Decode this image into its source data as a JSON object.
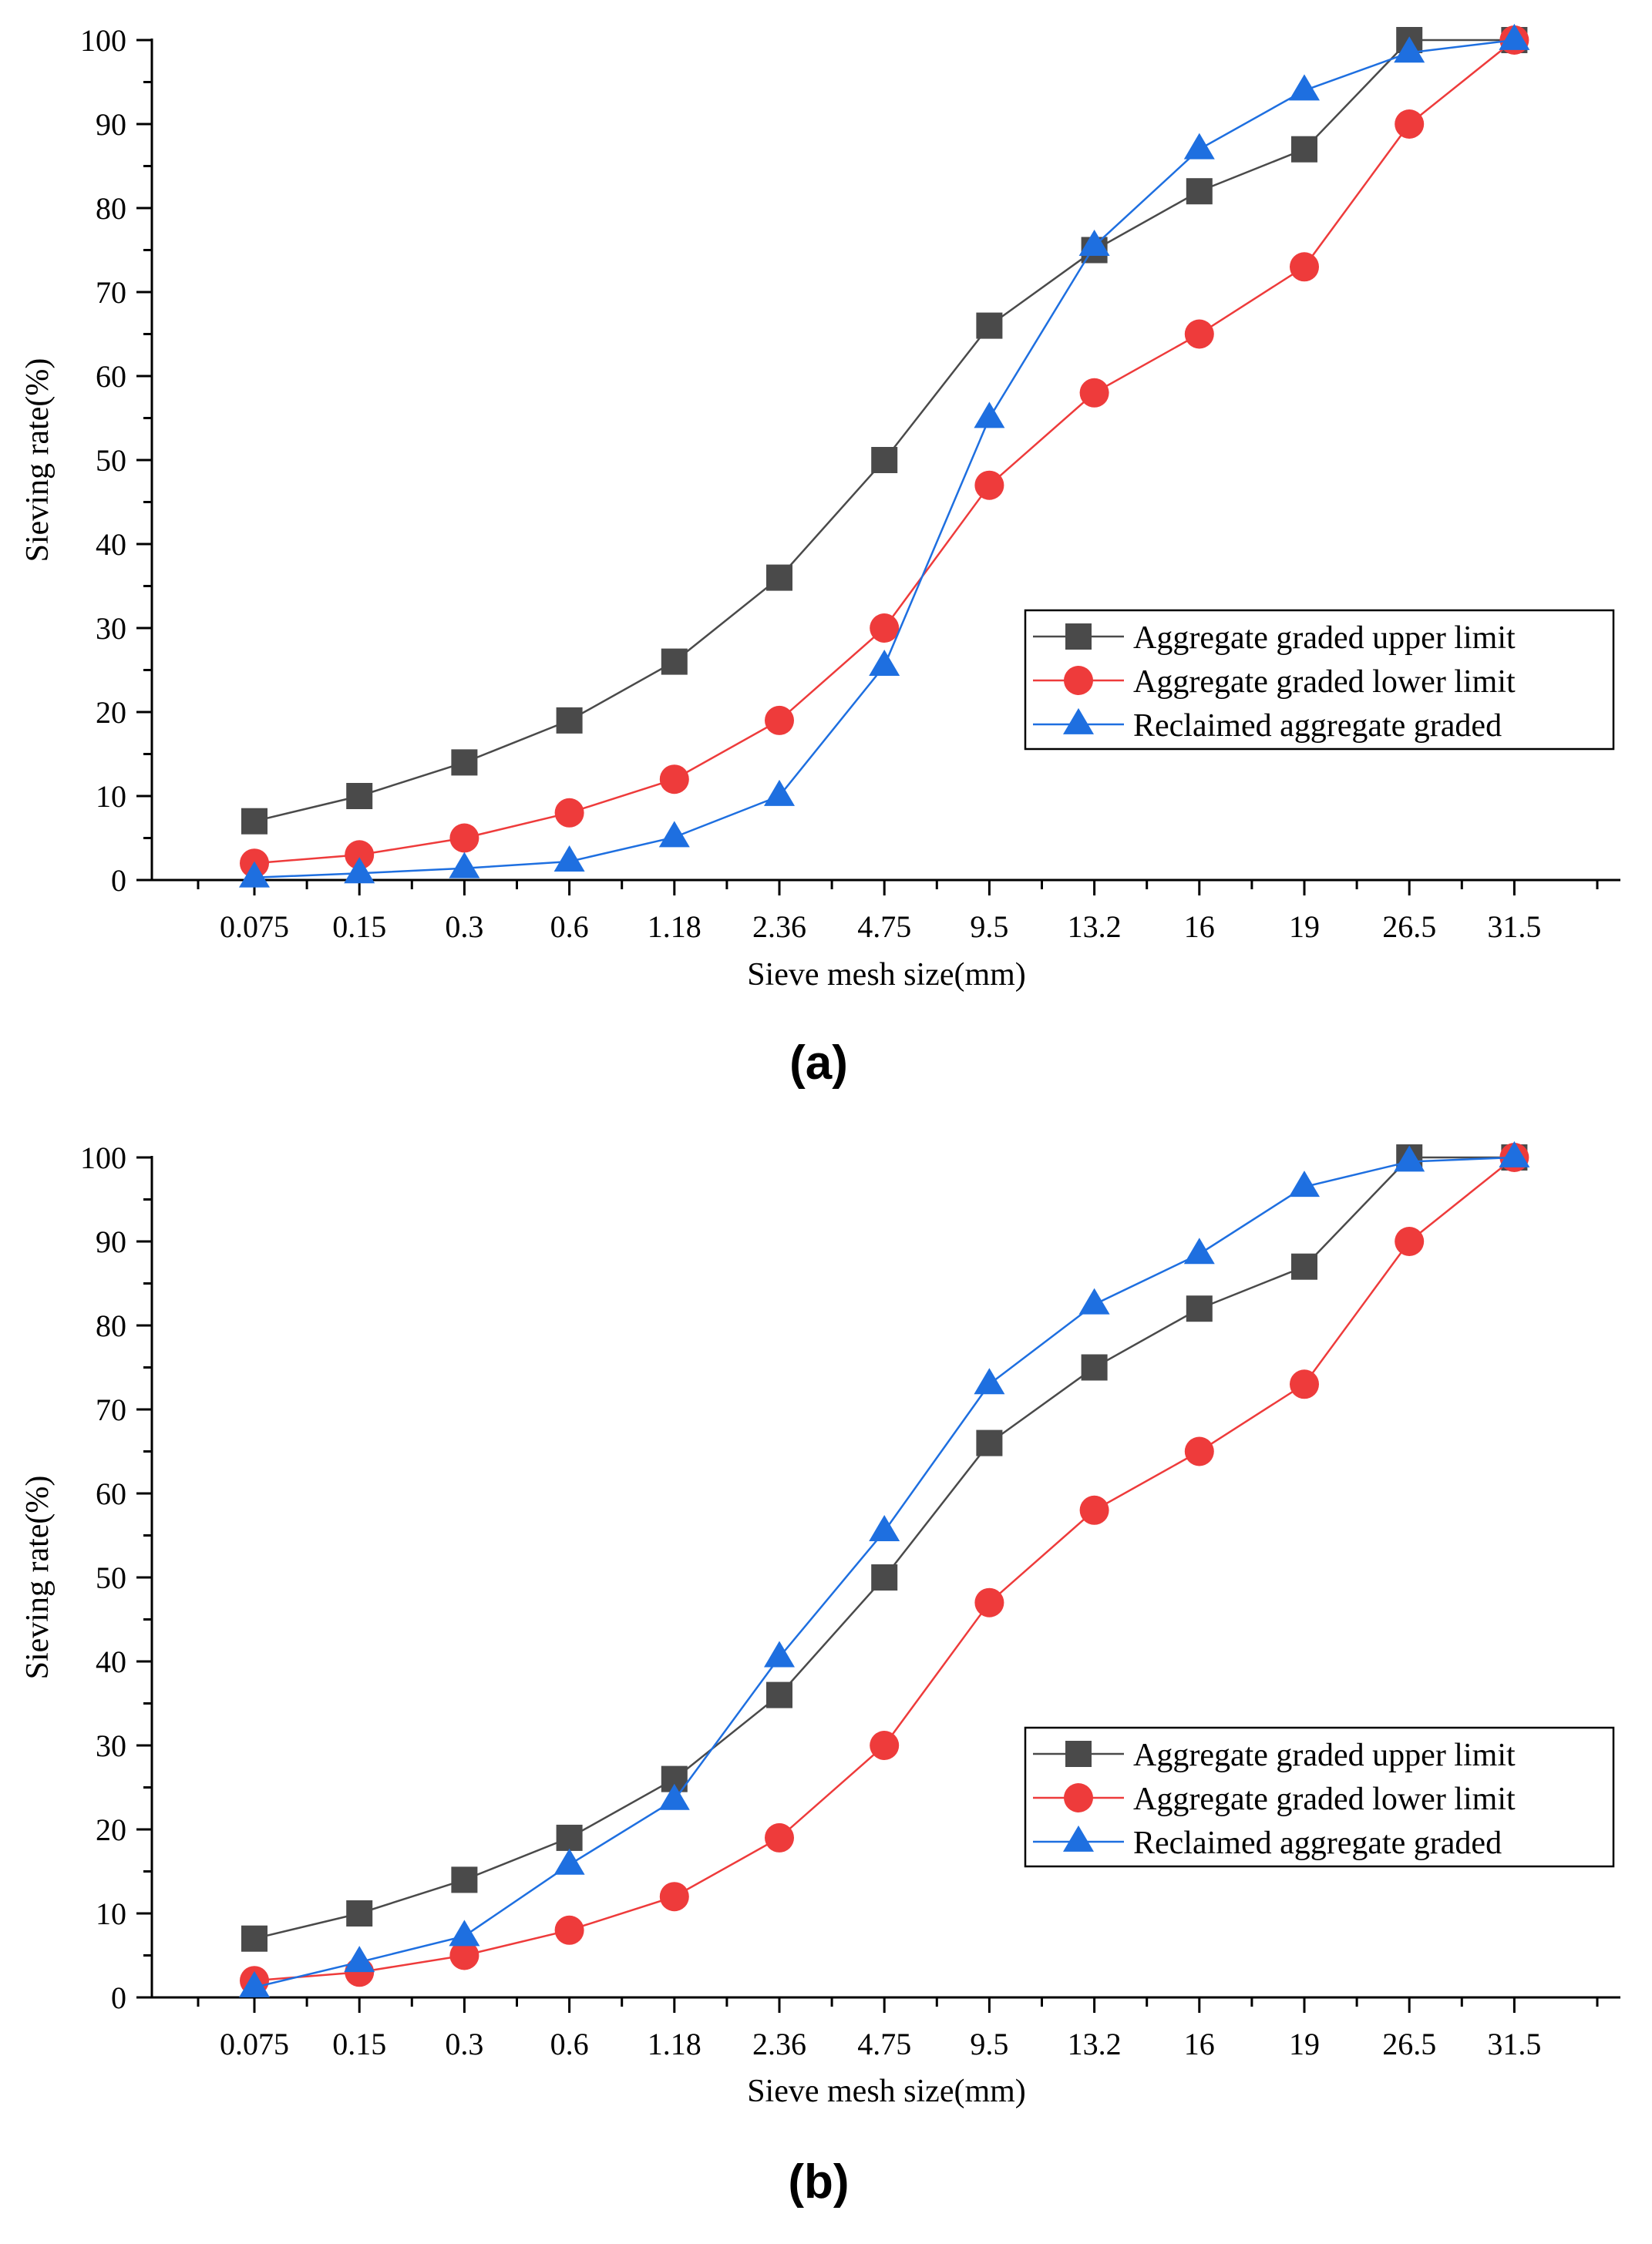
{
  "chart_data": [
    {
      "type": "line",
      "panel_label": "(a)",
      "xlabel": "Sieve mesh size(mm)",
      "ylabel": "Sieving rate(%)",
      "ylim": [
        0,
        100
      ],
      "yticks": [
        0,
        10,
        20,
        30,
        40,
        50,
        60,
        70,
        80,
        90,
        100
      ],
      "categories": [
        "0.075",
        "0.15",
        "0.3",
        "0.6",
        "1.18",
        "2.36",
        "4.75",
        "9.5",
        "13.2",
        "16",
        "19",
        "26.5",
        "31.5"
      ],
      "legend_position": "right",
      "series": [
        {
          "name": "Aggregate graded upper limit",
          "color": "#4a4a4a",
          "marker": "square",
          "values": [
            7,
            10,
            14,
            19,
            26,
            36,
            50,
            66,
            75,
            82,
            87,
            100,
            100
          ]
        },
        {
          "name": "Aggregate graded lower limit",
          "color": "#ee3b3b",
          "marker": "circle",
          "values": [
            2,
            3,
            5,
            8,
            12,
            19,
            30,
            47,
            58,
            65,
            73,
            90,
            100
          ]
        },
        {
          "name": "Reclaimed aggregate graded",
          "color": "#1e6fe0",
          "marker": "triangle",
          "values": [
            0.3,
            0.8,
            1.4,
            2.2,
            5.1,
            10,
            25.5,
            55,
            75.5,
            87,
            94,
            98.5,
            100
          ]
        }
      ]
    },
    {
      "type": "line",
      "panel_label": "(b)",
      "xlabel": "Sieve mesh size(mm)",
      "ylabel": "Sieving rate(%)",
      "ylim": [
        0,
        100
      ],
      "yticks": [
        0,
        10,
        20,
        30,
        40,
        50,
        60,
        70,
        80,
        90,
        100
      ],
      "categories": [
        "0.075",
        "0.15",
        "0.3",
        "0.6",
        "1.18",
        "2.36",
        "4.75",
        "9.5",
        "13.2",
        "16",
        "19",
        "26.5",
        "31.5"
      ],
      "legend_position": "right",
      "series": [
        {
          "name": "Aggregate graded upper limit",
          "color": "#4a4a4a",
          "marker": "square",
          "values": [
            7,
            10,
            14,
            19,
            26,
            36,
            50,
            66,
            75,
            82,
            87,
            100,
            100
          ]
        },
        {
          "name": "Aggregate graded lower limit",
          "color": "#ee3b3b",
          "marker": "circle",
          "values": [
            2,
            3,
            5,
            8,
            12,
            19,
            30,
            47,
            58,
            65,
            73,
            90,
            100
          ]
        },
        {
          "name": "Reclaimed aggregate graded",
          "color": "#1e6fe0",
          "marker": "triangle",
          "values": [
            1.2,
            4.2,
            7.3,
            15.8,
            23.5,
            40.5,
            55.5,
            73,
            82.5,
            88.5,
            96.5,
            99.5,
            100
          ]
        }
      ]
    }
  ]
}
